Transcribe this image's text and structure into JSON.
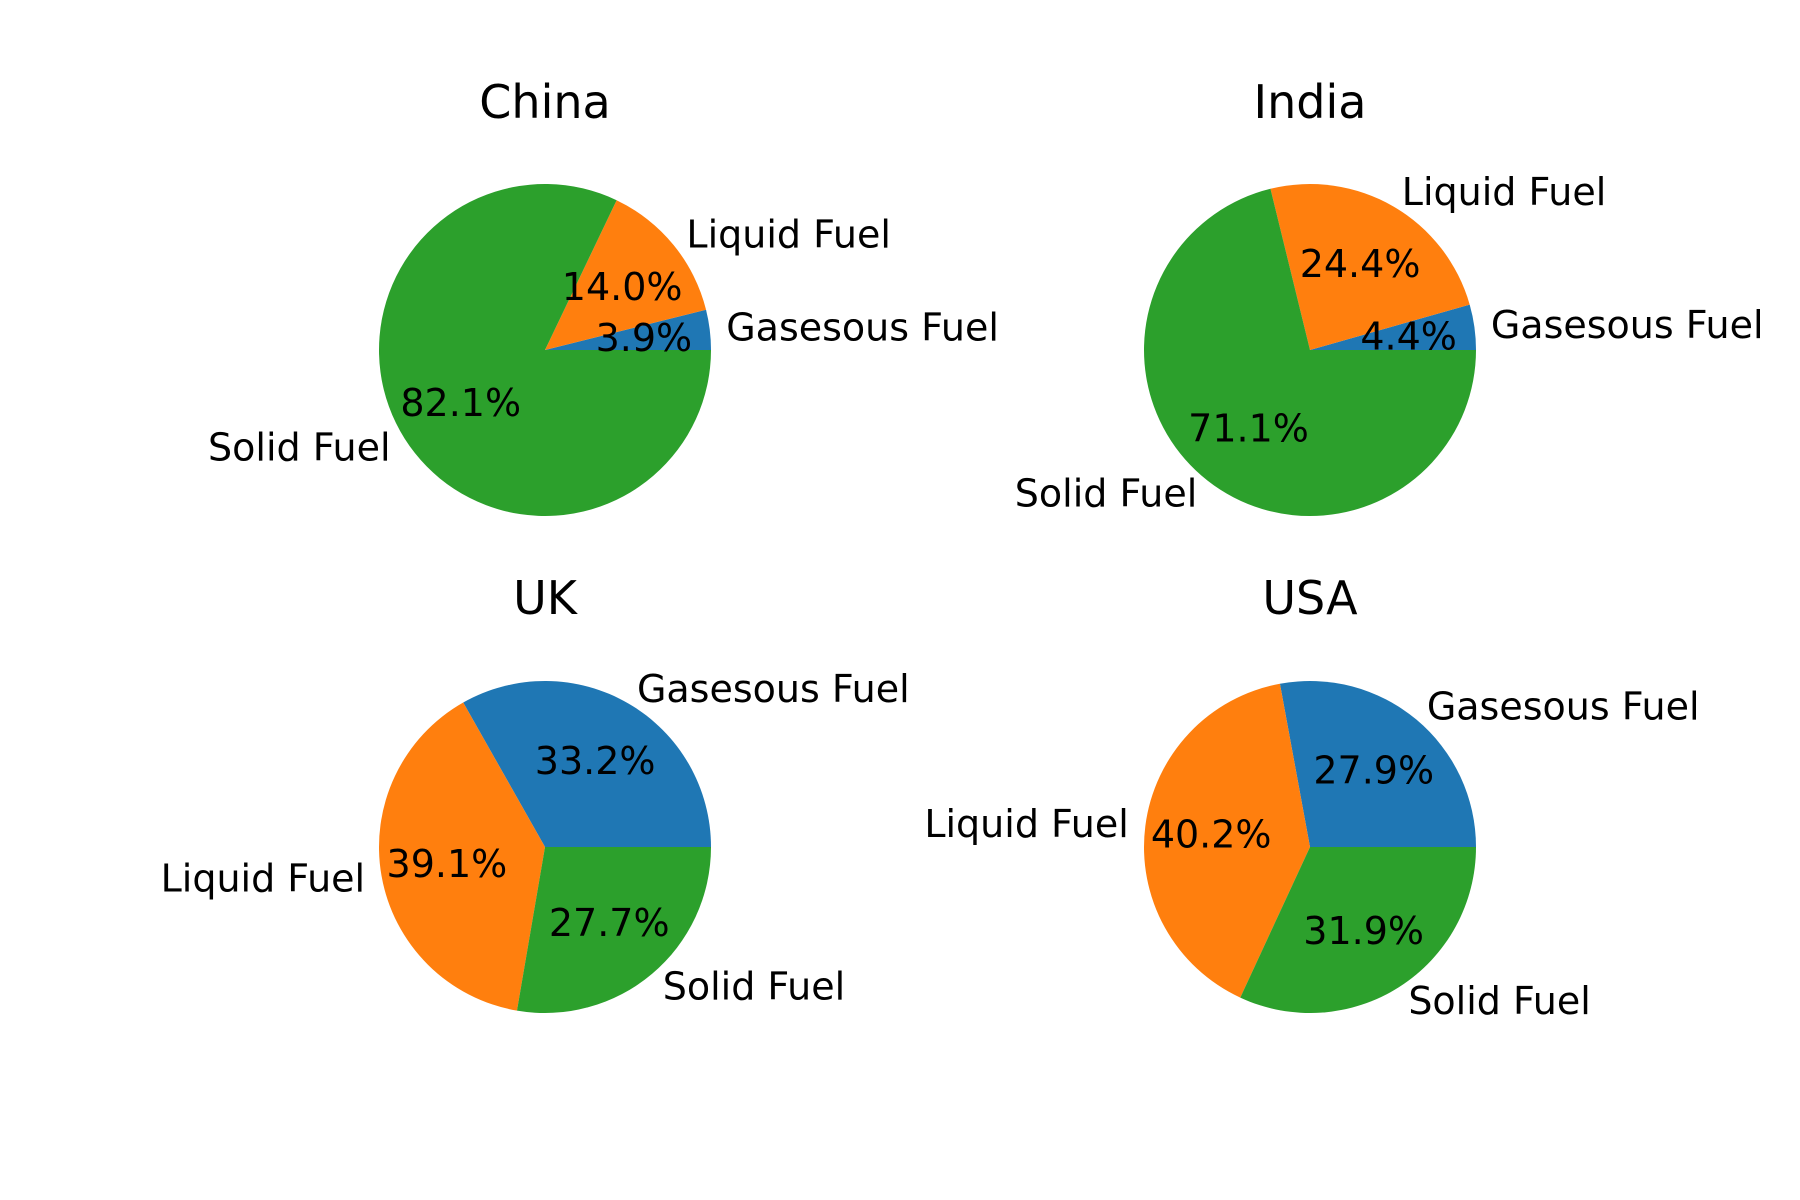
{
  "chart_data": [
    {
      "type": "pie",
      "title": "China",
      "categories": [
        "Gasesous Fuel",
        "Liquid Fuel",
        "Solid Fuel"
      ],
      "values": [
        3.9,
        14.0,
        82.1
      ],
      "value_labels": [
        "3.9%",
        "14.0%",
        "82.1%"
      ],
      "colors": [
        "#1f77b4",
        "#ff7f0e",
        "#2ca02c"
      ]
    },
    {
      "type": "pie",
      "title": "India",
      "categories": [
        "Gasesous Fuel",
        "Liquid Fuel",
        "Solid Fuel"
      ],
      "values": [
        4.4,
        24.4,
        71.1
      ],
      "value_labels": [
        "4.4%",
        "24.4%",
        "71.1%"
      ],
      "colors": [
        "#1f77b4",
        "#ff7f0e",
        "#2ca02c"
      ]
    },
    {
      "type": "pie",
      "title": "UK",
      "categories": [
        "Gasesous Fuel",
        "Liquid Fuel",
        "Solid Fuel"
      ],
      "values": [
        33.2,
        39.1,
        27.7
      ],
      "value_labels": [
        "33.2%",
        "39.1%",
        "27.7%"
      ],
      "colors": [
        "#1f77b4",
        "#ff7f0e",
        "#2ca02c"
      ]
    },
    {
      "type": "pie",
      "title": "USA",
      "categories": [
        "Gasesous Fuel",
        "Liquid Fuel",
        "Solid Fuel"
      ],
      "values": [
        27.9,
        40.2,
        31.9
      ],
      "value_labels": [
        "27.9%",
        "40.2%",
        "31.9%"
      ],
      "colors": [
        "#1f77b4",
        "#ff7f0e",
        "#2ca02c"
      ]
    }
  ]
}
